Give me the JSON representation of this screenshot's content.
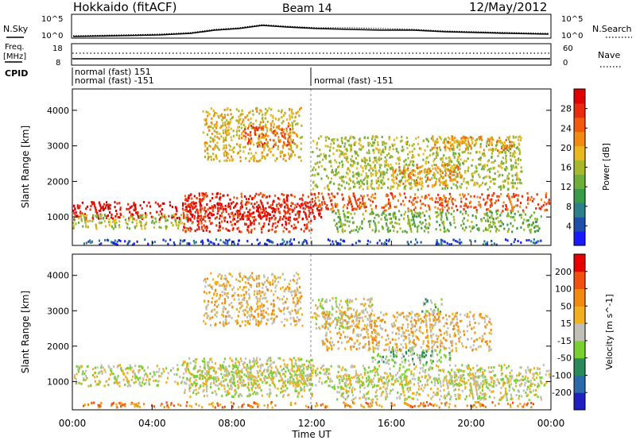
{
  "header": {
    "title": "Hokkaido (fitACF)",
    "beam": "Beam 14",
    "date": "12/May/2012"
  },
  "panels": {
    "nsky": {
      "label": "N.Sky",
      "right_label": "N.Search",
      "ticks_left": [
        "10^5",
        "10^0"
      ],
      "ticks_right": [
        "10^5",
        "10^0"
      ]
    },
    "freq": {
      "label_top": "Freq.",
      "label_bottom": "[MHz]",
      "right_label": "Nave",
      "ticks_left": [
        "18",
        "8"
      ],
      "ticks_right": [
        "60",
        "0"
      ]
    },
    "cpid": {
      "label": "CPID",
      "entries": [
        "normal (fast) 151",
        "normal (fast) -151",
        "normal (fast) -151"
      ]
    }
  },
  "chart_data": [
    {
      "type": "heatmap",
      "title": "",
      "xlabel": "Time UT",
      "ylabel": "Slant Range [km]",
      "x_ticks": [
        "00:00",
        "04:00",
        "08:00",
        "12:00",
        "16:00",
        "20:00",
        "00:00"
      ],
      "y_ticks": [
        "1000",
        "2000",
        "3000",
        "4000"
      ],
      "ylim": [
        200,
        4600
      ],
      "colorbar": {
        "label": "Power [dB]",
        "ticks": [
          "4",
          "8",
          "12",
          "16",
          "20",
          "24",
          "28"
        ],
        "colors": [
          "#1a1aff",
          "#1f4fa8",
          "#2e7f8a",
          "#3a9a4a",
          "#6fae3a",
          "#a8b82e",
          "#e8b820",
          "#f08a10",
          "#f05a10",
          "#e82a10",
          "#e00000"
        ]
      },
      "bands": [
        {
          "t0": 0.0,
          "t1": 12.5,
          "r0": 950,
          "r1": 1450,
          "level": 10
        },
        {
          "t0": 5.5,
          "t1": 12.0,
          "r0": 600,
          "r1": 1700,
          "level": 9
        },
        {
          "t0": 12.0,
          "t1": 23.9,
          "r0": 1200,
          "r1": 1700,
          "level": 8
        },
        {
          "t0": 0.0,
          "t1": 6.0,
          "r0": 700,
          "r1": 1100,
          "level": 5
        },
        {
          "t0": 6.5,
          "t1": 11.5,
          "r0": 2600,
          "r1": 4100,
          "level": 6
        },
        {
          "t0": 8.5,
          "t1": 11.0,
          "r0": 3000,
          "r1": 3600,
          "level": 8
        },
        {
          "t0": 12.0,
          "t1": 22.5,
          "r0": 1800,
          "r1": 3300,
          "level": 5
        },
        {
          "t0": 18.0,
          "t1": 22.0,
          "r0": 2900,
          "r1": 3300,
          "level": 7
        },
        {
          "t0": 16.0,
          "t1": 19.5,
          "r0": 1900,
          "r1": 2500,
          "level": 7
        },
        {
          "t0": 13.0,
          "t1": 23.5,
          "r0": 600,
          "r1": 1200,
          "level": 4
        },
        {
          "t0": 0.5,
          "t1": 23.5,
          "r0": 250,
          "r1": 400,
          "level": 1
        }
      ]
    },
    {
      "type": "heatmap",
      "title": "",
      "xlabel": "Time UT",
      "ylabel": "Slant Range [km]",
      "x_ticks": [
        "00:00",
        "04:00",
        "08:00",
        "12:00",
        "16:00",
        "20:00",
        "00:00"
      ],
      "y_ticks": [
        "1000",
        "2000",
        "3000",
        "4000"
      ],
      "ylim": [
        200,
        4600
      ],
      "colorbar": {
        "label": "Velocity [m s^-1]",
        "ticks": [
          "200",
          "100",
          "50",
          "15",
          "-15",
          "-50",
          "-100",
          "-200"
        ],
        "colors": [
          "#2020c0",
          "#2a6aa8",
          "#2a8a5a",
          "#7ad030",
          "#c0c0b8",
          "#f0b020",
          "#f08a10",
          "#f05010",
          "#e80000"
        ]
      },
      "bands": [
        {
          "t0": 0.0,
          "t1": 23.9,
          "r0": 900,
          "r1": 1500,
          "level": 4
        },
        {
          "t0": 5.5,
          "t1": 12.0,
          "r0": 600,
          "r1": 1700,
          "level": 4
        },
        {
          "t0": 6.5,
          "t1": 11.5,
          "r0": 2600,
          "r1": 4100,
          "level": 5
        },
        {
          "t0": 12.0,
          "t1": 15.0,
          "r0": 2500,
          "r1": 3400,
          "level": 4
        },
        {
          "t0": 15.0,
          "t1": 19.0,
          "r0": 1500,
          "r1": 2000,
          "level": 3
        },
        {
          "t0": 17.5,
          "t1": 18.5,
          "r0": 3000,
          "r1": 3400,
          "level": 3
        },
        {
          "t0": 12.5,
          "t1": 21.0,
          "r0": 1900,
          "r1": 3000,
          "level": 5
        },
        {
          "t0": 13.0,
          "t1": 23.5,
          "r0": 500,
          "r1": 1200,
          "level": 4
        },
        {
          "t0": 0.5,
          "t1": 23.5,
          "r0": 300,
          "r1": 450,
          "level": 6
        }
      ]
    }
  ]
}
